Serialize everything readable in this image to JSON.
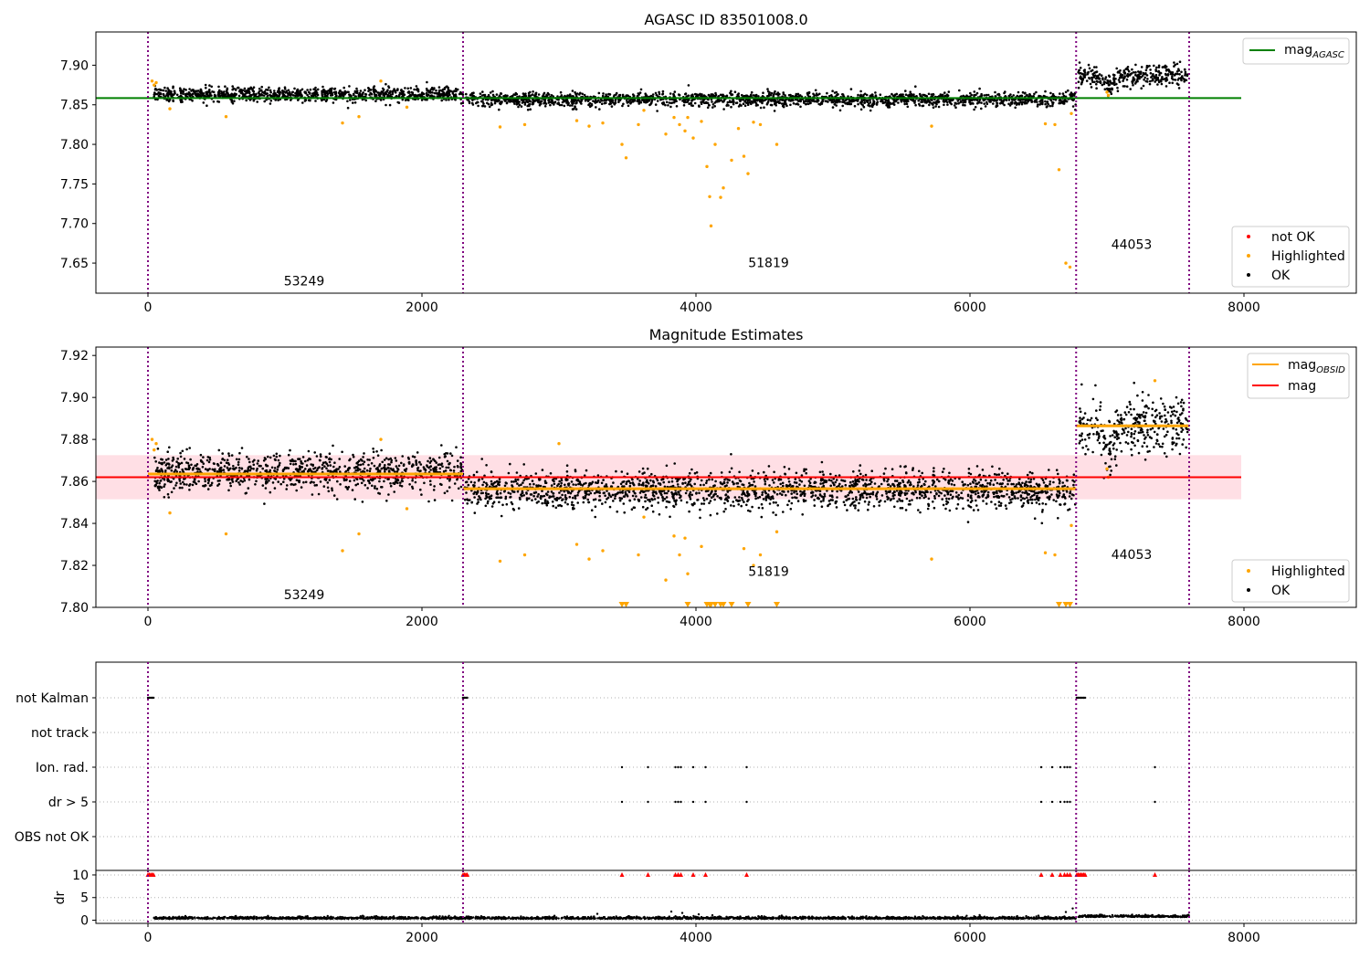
{
  "chart_data": [
    {
      "type": "scatter",
      "title": "AGASC ID 83501008.0",
      "xlim": [
        -380,
        8820
      ],
      "ylim": [
        7.612,
        7.942
      ],
      "x_ticks": [
        0,
        2000,
        4000,
        6000,
        8000
      ],
      "x_tick_labels": [
        "0",
        "2000",
        "4000",
        "6000",
        "8000"
      ],
      "y_ticks": [
        7.65,
        7.7,
        7.75,
        7.8,
        7.85,
        7.9
      ],
      "y_tick_labels": [
        "7.65",
        "7.70",
        "7.75",
        "7.80",
        "7.85",
        "7.90"
      ],
      "obsid_boundaries": [
        0,
        2300,
        6775,
        7600
      ],
      "obsid_labels": [
        {
          "text": "53249",
          "x": 1140,
          "y": 7.622
        },
        {
          "text": "51819",
          "x": 4530,
          "y": 7.645
        },
        {
          "text": "44053",
          "x": 7180,
          "y": 7.668
        }
      ],
      "reference_lines": [
        {
          "name": "mag",
          "subscript": "AGASC",
          "color": "#008000",
          "y": 7.8585,
          "x_range": [
            -380,
            7980
          ]
        }
      ],
      "segments": [
        {
          "x0": 40,
          "x1": 2300,
          "center": 7.863,
          "scatter": 0.0045
        },
        {
          "x0": 2310,
          "x1": 6775,
          "center": 7.857,
          "scatter": 0.0045
        },
        {
          "x0": 6790,
          "x1": 7600,
          "center": 7.887,
          "scatter": 0.007
        }
      ],
      "series": [
        {
          "name": "not OK",
          "color": "#ff0000",
          "x": [],
          "y": []
        },
        {
          "name": "Highlighted",
          "color": "#ffa500",
          "x": [
            30,
            45,
            60,
            160,
            570,
            1420,
            1540,
            1700,
            1890,
            2570,
            2750,
            3130,
            3220,
            3320,
            3460,
            3490,
            3580,
            3620,
            3780,
            3840,
            3880,
            3920,
            3940,
            3980,
            4040,
            4080,
            4100,
            4110,
            4140,
            4180,
            4200,
            4260,
            4310,
            4350,
            4380,
            4420,
            4470,
            4590,
            5720,
            6550,
            6620,
            6650,
            6700,
            6730,
            6740,
            7000,
            7010
          ],
          "y": [
            7.88,
            7.875,
            7.878,
            7.845,
            7.835,
            7.827,
            7.835,
            7.88,
            7.847,
            7.822,
            7.825,
            7.83,
            7.823,
            7.827,
            7.8,
            7.783,
            7.825,
            7.843,
            7.813,
            7.834,
            7.825,
            7.817,
            7.834,
            7.808,
            7.829,
            7.772,
            7.734,
            7.697,
            7.8,
            7.733,
            7.745,
            7.78,
            7.82,
            7.785,
            7.763,
            7.828,
            7.825,
            7.8,
            7.823,
            7.826,
            7.825,
            7.768,
            7.65,
            7.645,
            7.839,
            7.866,
            7.862
          ]
        },
        {
          "name": "OK",
          "color": "#000000",
          "x": [],
          "y": []
        }
      ],
      "legends": [
        {
          "position": "upper right",
          "entries": [
            {
              "label": "mag",
              "subscript": "AGASC",
              "kind": "line",
              "color": "#008000"
            }
          ]
        },
        {
          "position": "lower right",
          "entries": [
            {
              "label": "not OK",
              "kind": "dot",
              "color": "#ff0000"
            },
            {
              "label": "Highlighted",
              "kind": "dot",
              "color": "#ffa500"
            },
            {
              "label": "OK",
              "kind": "dot",
              "color": "#000000"
            }
          ]
        }
      ]
    },
    {
      "type": "scatter",
      "title": "Magnitude Estimates",
      "xlim": [
        -380,
        8820
      ],
      "ylim": [
        7.8,
        7.924
      ],
      "x_ticks": [
        0,
        2000,
        4000,
        6000,
        8000
      ],
      "x_tick_labels": [
        "0",
        "2000",
        "4000",
        "6000",
        "8000"
      ],
      "y_ticks": [
        7.8,
        7.82,
        7.84,
        7.86,
        7.88,
        7.9,
        7.92
      ],
      "y_tick_labels": [
        "7.80",
        "7.82",
        "7.84",
        "7.86",
        "7.88",
        "7.90",
        "7.92"
      ],
      "obsid_boundaries": [
        0,
        2300,
        6775,
        7600
      ],
      "obsid_labels": [
        {
          "text": "53249",
          "x": 1140,
          "y": 7.804
        },
        {
          "text": "51819",
          "x": 4530,
          "y": 7.815
        },
        {
          "text": "44053",
          "x": 7180,
          "y": 7.823
        }
      ],
      "band": {
        "color": "#ffc0cb",
        "y0": 7.8515,
        "y1": 7.8725,
        "x_range": [
          -380,
          7980
        ]
      },
      "reference_lines": [
        {
          "name": "mag",
          "color": "#ff0000",
          "y": 7.862,
          "x_range": [
            -380,
            7980
          ]
        }
      ],
      "obsid_means": [
        {
          "name": "mag",
          "subscript": "OBSID",
          "color": "#ffa500",
          "values": [
            {
              "x0": 0,
              "x1": 2300,
              "y": 7.8635
            },
            {
              "x0": 2300,
              "x1": 6775,
              "y": 7.8565
            },
            {
              "x0": 6775,
              "x1": 7600,
              "y": 7.8865
            }
          ]
        }
      ],
      "segments": [
        {
          "x0": 40,
          "x1": 2300,
          "center": 7.864,
          "scatter": 0.0045
        },
        {
          "x0": 2310,
          "x1": 6775,
          "center": 7.856,
          "scatter": 0.0045
        },
        {
          "x0": 6790,
          "x1": 7600,
          "center": 7.887,
          "scatter": 0.007
        }
      ],
      "series": [
        {
          "name": "Highlighted",
          "color": "#ffa500",
          "x": [
            30,
            45,
            60,
            160,
            570,
            1420,
            1540,
            1700,
            1890,
            2570,
            2750,
            3000,
            3130,
            3220,
            3320,
            3580,
            3620,
            3780,
            3840,
            3880,
            3920,
            3940,
            4040,
            4350,
            4420,
            4470,
            4590,
            5720,
            6550,
            6620,
            6740,
            7000,
            7010,
            7350
          ],
          "y": [
            7.88,
            7.875,
            7.878,
            7.845,
            7.835,
            7.827,
            7.835,
            7.88,
            7.847,
            7.822,
            7.825,
            7.878,
            7.83,
            7.823,
            7.827,
            7.825,
            7.843,
            7.813,
            7.834,
            7.825,
            7.833,
            7.816,
            7.829,
            7.828,
            7.82,
            7.825,
            7.836,
            7.823,
            7.826,
            7.825,
            7.839,
            7.866,
            7.862,
            7.908
          ]
        },
        {
          "name": "OK",
          "color": "#000000",
          "x": [],
          "y": []
        }
      ],
      "clipped_markers": {
        "color": "#ffa500",
        "x": [
          3460,
          3490,
          3940,
          4080,
          4100,
          4110,
          4140,
          4180,
          4200,
          4260,
          4380,
          4590,
          6650,
          6700,
          6730
        ],
        "y": 7.8
      },
      "legends": [
        {
          "position": "upper right",
          "entries": [
            {
              "label": "mag",
              "subscript": "OBSID",
              "kind": "line",
              "color": "#ffa500"
            },
            {
              "label": "mag",
              "kind": "line",
              "color": "#ff0000"
            }
          ]
        },
        {
          "position": "lower right",
          "entries": [
            {
              "label": "Highlighted",
              "kind": "dot",
              "color": "#ffa500"
            },
            {
              "label": "OK",
              "kind": "dot",
              "color": "#000000"
            }
          ]
        }
      ]
    },
    {
      "type": "scatter",
      "xlim": [
        -380,
        8820
      ],
      "x_ticks": [
        0,
        2000,
        4000,
        6000,
        8000
      ],
      "x_tick_labels": [
        "0",
        "2000",
        "4000",
        "6000",
        "8000"
      ],
      "obsid_boundaries": [
        0,
        2300,
        6775,
        7600
      ],
      "flag_categories": [
        "not Kalman",
        "not track",
        "Ion. rad.",
        "dr > 5",
        "OBS not OK"
      ],
      "flags": {
        "not Kalman": [
          0,
          10,
          20,
          30,
          40,
          2300,
          2310,
          2320,
          2330,
          6780,
          6790,
          6800,
          6810,
          6820,
          6830,
          6840
        ],
        "not track": [],
        "Ion. rad.": [
          3460,
          3650,
          3850,
          3870,
          3890,
          3980,
          4070,
          4370,
          6520,
          6600,
          6660,
          6690,
          6710,
          6730,
          7350
        ],
        "dr > 5": [
          3460,
          3650,
          3850,
          3870,
          3890,
          3980,
          4070,
          4370,
          6520,
          6600,
          6660,
          6690,
          6710,
          6730,
          7350
        ],
        "OBS not OK": []
      },
      "dr_panel": {
        "ylabel": "dr",
        "ylim": [
          -0.7,
          11
        ],
        "y_ticks": [
          0,
          5,
          10
        ],
        "y_tick_labels": [
          "0",
          "5",
          "10"
        ],
        "clip_markers": {
          "color": "#ff0000",
          "y": 10,
          "x": [
            0,
            10,
            20,
            30,
            40,
            2300,
            2310,
            2320,
            2330,
            3460,
            3650,
            3850,
            3870,
            3890,
            3980,
            4070,
            4370,
            6520,
            6600,
            6660,
            6690,
            6710,
            6730,
            6780,
            6790,
            6800,
            6810,
            6820,
            6830,
            6840,
            7350
          ]
        },
        "spikes": {
          "x": [
            3280,
            3820,
            3900,
            4020,
            4120,
            4480,
            6500,
            6700,
            6750
          ],
          "y": [
            1.4,
            1.9,
            1.6,
            1.3,
            1.1,
            0.9,
            1.0,
            1.8,
            2.6
          ]
        }
      }
    }
  ]
}
